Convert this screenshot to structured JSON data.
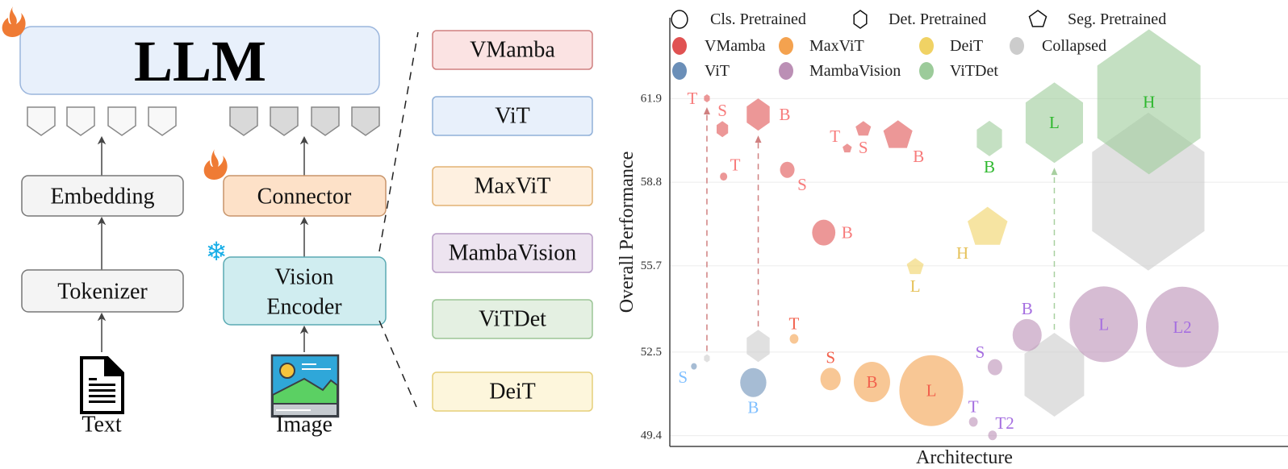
{
  "diagram": {
    "llm_label": "LLM",
    "embedding_label": "Embedding",
    "tokenizer_label": "Tokenizer",
    "connector_label": "Connector",
    "vision_encoder_label": [
      "Vision",
      "Encoder"
    ],
    "text_input_label": "Text",
    "image_input_label": "Image",
    "trainable_icon": "flame-icon",
    "frozen_icon": "snowflake-icon",
    "architectures": [
      {
        "label": "VMamba",
        "fill": "#fbe3e3",
        "stroke": "#d08080"
      },
      {
        "label": "ViT",
        "fill": "#e8f0fb",
        "stroke": "#90b0d8"
      },
      {
        "label": "MaxViT",
        "fill": "#fef0e0",
        "stroke": "#e2b274"
      },
      {
        "label": "MambaVision",
        "fill": "#ede4f0",
        "stroke": "#b89cc6"
      },
      {
        "label": "ViTDet",
        "fill": "#e4f0e2",
        "stroke": "#9cc596"
      },
      {
        "label": "DeiT",
        "fill": "#fdf6dc",
        "stroke": "#e6cf7a"
      }
    ]
  },
  "chart_data": {
    "type": "scatter",
    "xlabel": "Architecture",
    "ylabel": "Overall Performance",
    "yticks": [
      61.9,
      58.8,
      55.7,
      52.5,
      49.4
    ],
    "ylim": [
      49.0,
      64.9
    ],
    "grid": true,
    "legend_placement": "top",
    "shape_legend": [
      {
        "shape": "circle",
        "label": "Cls. Pretrained"
      },
      {
        "shape": "hexagon",
        "label": "Det. Pretrained"
      },
      {
        "shape": "pentagon",
        "label": "Seg. Pretrained"
      }
    ],
    "families": {
      "VMamba": {
        "color": "#e05252",
        "label_color": "#f77b7b"
      },
      "MaxViT": {
        "color": "#f4a24f",
        "label_color": "#f2604c"
      },
      "DeiT": {
        "color": "#f0d264",
        "label_color": "#e6c25a"
      },
      "Collapsed": {
        "color": "#cccccc",
        "label_color": "#999999"
      },
      "ViT": {
        "color": "#6b8fb8",
        "label_color": "#7fbfff"
      },
      "MambaVision": {
        "color": "#bb8fb5",
        "label_color": "#a56ee0"
      },
      "ViTDet": {
        "color": "#9ccb9a",
        "label_color": "#2eb82e"
      }
    },
    "color_legend": [
      "VMamba",
      "MaxViT",
      "DeiT",
      "Collapsed",
      "ViT",
      "MambaVision",
      "ViTDet"
    ],
    "points": [
      {
        "family": "VMamba",
        "shape": "hexagon",
        "label": "T",
        "x": 6,
        "y": 61.91,
        "size": 5,
        "label_pos": "left"
      },
      {
        "family": "VMamba",
        "shape": "hexagon",
        "label": "S",
        "x": 8.5,
        "y": 60.77,
        "size": 10,
        "label_pos": "above"
      },
      {
        "family": "VMamba",
        "shape": "hexagon",
        "label": "B",
        "x": 14.3,
        "y": 61.31,
        "size": 20,
        "label_pos": "right"
      },
      {
        "family": "VMamba",
        "shape": "circle",
        "label": "T",
        "x": 8.7,
        "y": 59.01,
        "size": 5,
        "label_pos": "above-right"
      },
      {
        "family": "VMamba",
        "shape": "circle",
        "label": "S",
        "x": 19,
        "y": 59.26,
        "size": 10,
        "label_pos": "below-right"
      },
      {
        "family": "VMamba",
        "shape": "circle",
        "label": "B",
        "x": 24.9,
        "y": 56.93,
        "size": 16,
        "label_pos": "right"
      },
      {
        "family": "VMamba",
        "shape": "pentagon",
        "label": "T",
        "x": 28.7,
        "y": 60.05,
        "size": 6,
        "label_pos": "above-left"
      },
      {
        "family": "VMamba",
        "shape": "pentagon",
        "label": "S",
        "x": 31.3,
        "y": 60.77,
        "size": 10,
        "label_pos": "below"
      },
      {
        "family": "VMamba",
        "shape": "pentagon",
        "label": "B",
        "x": 36.9,
        "y": 60.53,
        "size": 19,
        "label_pos": "below-right"
      },
      {
        "family": "ViT",
        "shape": "circle",
        "label": "S",
        "x": 3.9,
        "y": 51.97,
        "size": 4,
        "label_pos": "below-left"
      },
      {
        "family": "ViT",
        "shape": "circle",
        "label": "B",
        "x": 13.5,
        "y": 51.37,
        "size": 18,
        "label_pos": "below"
      },
      {
        "family": "Collapsed",
        "shape": "hexagon",
        "label": "",
        "x": 6,
        "y": 52.27,
        "size": 5,
        "label_pos": "none"
      },
      {
        "family": "Collapsed",
        "shape": "hexagon",
        "label": "",
        "x": 14.3,
        "y": 52.73,
        "size": 20,
        "label_pos": "none"
      },
      {
        "family": "Collapsed",
        "shape": "hexagon",
        "label": "",
        "x": 62.2,
        "y": 51.66,
        "size": 52,
        "label_pos": "none"
      },
      {
        "family": "Collapsed",
        "shape": "hexagon",
        "label": "",
        "x": 77.4,
        "y": 58.45,
        "size": 98,
        "label_pos": "none"
      },
      {
        "family": "ViTDet",
        "shape": "hexagon",
        "label": "B",
        "x": 51.7,
        "y": 60.42,
        "size": 22,
        "label_pos": "below"
      },
      {
        "family": "ViTDet",
        "shape": "hexagon",
        "label": "L",
        "x": 62.2,
        "y": 61.01,
        "size": 50,
        "label_pos": "center"
      },
      {
        "family": "ViTDet",
        "shape": "hexagon",
        "label": "H",
        "x": 77.5,
        "y": 61.78,
        "size": 90,
        "label_pos": "center"
      },
      {
        "family": "DeiT",
        "shape": "pentagon",
        "label": "L",
        "x": 39.7,
        "y": 55.66,
        "size": 11,
        "label_pos": "below"
      },
      {
        "family": "DeiT",
        "shape": "pentagon",
        "label": "H",
        "x": 51.4,
        "y": 57.11,
        "size": 26,
        "label_pos": "below-left"
      },
      {
        "family": "MaxViT",
        "shape": "circle",
        "label": "T",
        "x": 20.1,
        "y": 52.99,
        "size": 6,
        "label_pos": "above"
      },
      {
        "family": "MaxViT",
        "shape": "circle",
        "label": "S",
        "x": 26,
        "y": 51.5,
        "size": 14,
        "label_pos": "above"
      },
      {
        "family": "MaxViT",
        "shape": "circle",
        "label": "B",
        "x": 32.7,
        "y": 51.39,
        "size": 25,
        "label_pos": "center"
      },
      {
        "family": "MaxViT",
        "shape": "circle",
        "label": "L",
        "x": 42.3,
        "y": 51.07,
        "size": 44,
        "label_pos": "center"
      },
      {
        "family": "MambaVision",
        "shape": "circle",
        "label": "T",
        "x": 49.1,
        "y": 49.91,
        "size": 6,
        "label_pos": "above"
      },
      {
        "family": "MambaVision",
        "shape": "circle",
        "label": "T2",
        "x": 52.2,
        "y": 49.41,
        "size": 6,
        "label_pos": "above-right"
      },
      {
        "family": "MambaVision",
        "shape": "circle",
        "label": "S",
        "x": 52.6,
        "y": 51.94,
        "size": 10,
        "label_pos": "above-left"
      },
      {
        "family": "MambaVision",
        "shape": "circle",
        "label": "B",
        "x": 57.8,
        "y": 53.13,
        "size": 20,
        "label_pos": "above"
      },
      {
        "family": "MambaVision",
        "shape": "circle",
        "label": "L",
        "x": 70.2,
        "y": 53.53,
        "size": 47,
        "label_pos": "center"
      },
      {
        "family": "MambaVision",
        "shape": "circle",
        "label": "L2",
        "x": 82.9,
        "y": 53.43,
        "size": 50,
        "label_pos": "center"
      }
    ],
    "arrows": [
      {
        "from": 11,
        "to": 0,
        "color": "#d08080"
      },
      {
        "from": 12,
        "to": 2,
        "color": "#d08080"
      },
      {
        "from": 13,
        "to": 16,
        "color": "#a8d0a0"
      }
    ]
  }
}
